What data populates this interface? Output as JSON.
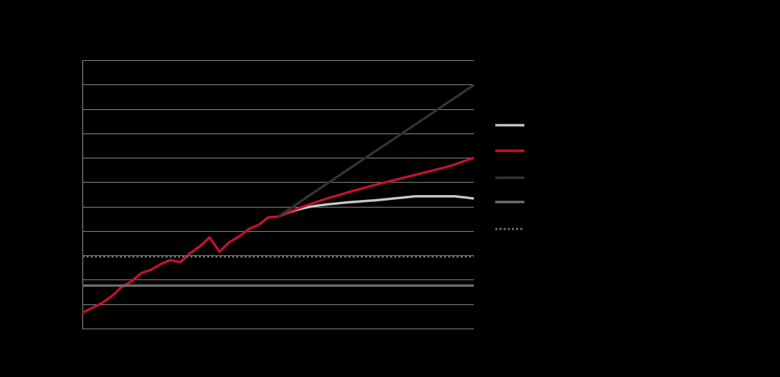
{
  "chart_data": {
    "type": "line",
    "x": [
      0,
      2,
      4,
      6,
      8,
      10,
      12,
      14,
      16,
      18,
      20,
      22,
      24,
      26,
      28,
      30,
      32,
      34,
      36,
      38,
      40,
      42,
      44,
      46,
      48,
      50,
      52,
      54,
      56,
      58,
      60,
      62,
      64,
      66,
      68,
      70,
      72,
      74,
      76,
      78,
      80
    ],
    "xlim": [
      0,
      80
    ],
    "ylim": [
      0,
      11
    ],
    "yticks": [
      0,
      1,
      2,
      3,
      4,
      5,
      6,
      7,
      8,
      9,
      10,
      11
    ],
    "grid": true,
    "legend": "right",
    "series": [
      {
        "color": "#c8c8c8",
        "values": [
          null,
          null,
          null,
          null,
          null,
          null,
          null,
          null,
          null,
          null,
          null,
          null,
          null,
          null,
          null,
          null,
          null,
          null,
          null,
          null,
          4.59,
          4.75,
          4.88,
          4.97,
          5.04,
          5.09,
          5.13,
          5.17,
          5.2,
          5.23,
          5.26,
          5.3,
          5.34,
          5.38,
          5.42,
          5.42,
          5.42,
          5.42,
          5.42,
          5.38,
          5.33
        ]
      },
      {
        "color": "#c8102e",
        "values": [
          0.65,
          0.85,
          1.05,
          1.33,
          1.7,
          1.93,
          2.27,
          2.41,
          2.64,
          2.81,
          2.72,
          3.09,
          3.37,
          3.74,
          3.15,
          3.54,
          3.77,
          4.08,
          4.25,
          4.56,
          4.59,
          4.76,
          4.92,
          5.06,
          5.2,
          5.33,
          5.45,
          5.57,
          5.68,
          5.79,
          5.9,
          6.0,
          6.1,
          6.2,
          6.3,
          6.4,
          6.5,
          6.6,
          6.72,
          6.86,
          7.0
        ]
      },
      {
        "color": "#333333",
        "values": [
          null,
          null,
          null,
          null,
          null,
          null,
          null,
          null,
          null,
          null,
          null,
          null,
          null,
          null,
          null,
          null,
          null,
          null,
          null,
          null,
          4.59,
          4.86,
          5.13,
          5.4,
          5.67,
          5.94,
          6.21,
          6.48,
          6.75,
          7.02,
          7.29,
          7.55,
          7.82,
          8.09,
          8.36,
          8.63,
          8.9,
          9.17,
          9.44,
          9.71,
          9.98
        ]
      },
      {
        "color": "#6e6e6e",
        "values": [
          1.76,
          1.76,
          1.76,
          1.76,
          1.76,
          1.76,
          1.76,
          1.76,
          1.76,
          1.76,
          1.76,
          1.76,
          1.76,
          1.76,
          1.76,
          1.76,
          1.76,
          1.76,
          1.76,
          1.76,
          1.76,
          1.76,
          1.76,
          1.76,
          1.76,
          1.76,
          1.76,
          1.76,
          1.76,
          1.76,
          1.76,
          1.76,
          1.76,
          1.76,
          1.76,
          1.76,
          1.76,
          1.76,
          1.76,
          1.76,
          1.76
        ]
      },
      {
        "color": "#6e6e6e",
        "dashed": true,
        "values": [
          2.95,
          2.95,
          2.95,
          2.95,
          2.95,
          2.95,
          2.95,
          2.95,
          2.95,
          2.95,
          2.95,
          2.95,
          2.95,
          2.95,
          2.95,
          2.95,
          2.95,
          2.95,
          2.95,
          2.95,
          2.95,
          2.95,
          2.95,
          2.95,
          2.95,
          2.95,
          2.95,
          2.95,
          2.95,
          2.95,
          2.95,
          2.95,
          2.95,
          2.95,
          2.95,
          2.95,
          2.95,
          2.95,
          2.95,
          2.95,
          2.95
        ]
      }
    ]
  }
}
